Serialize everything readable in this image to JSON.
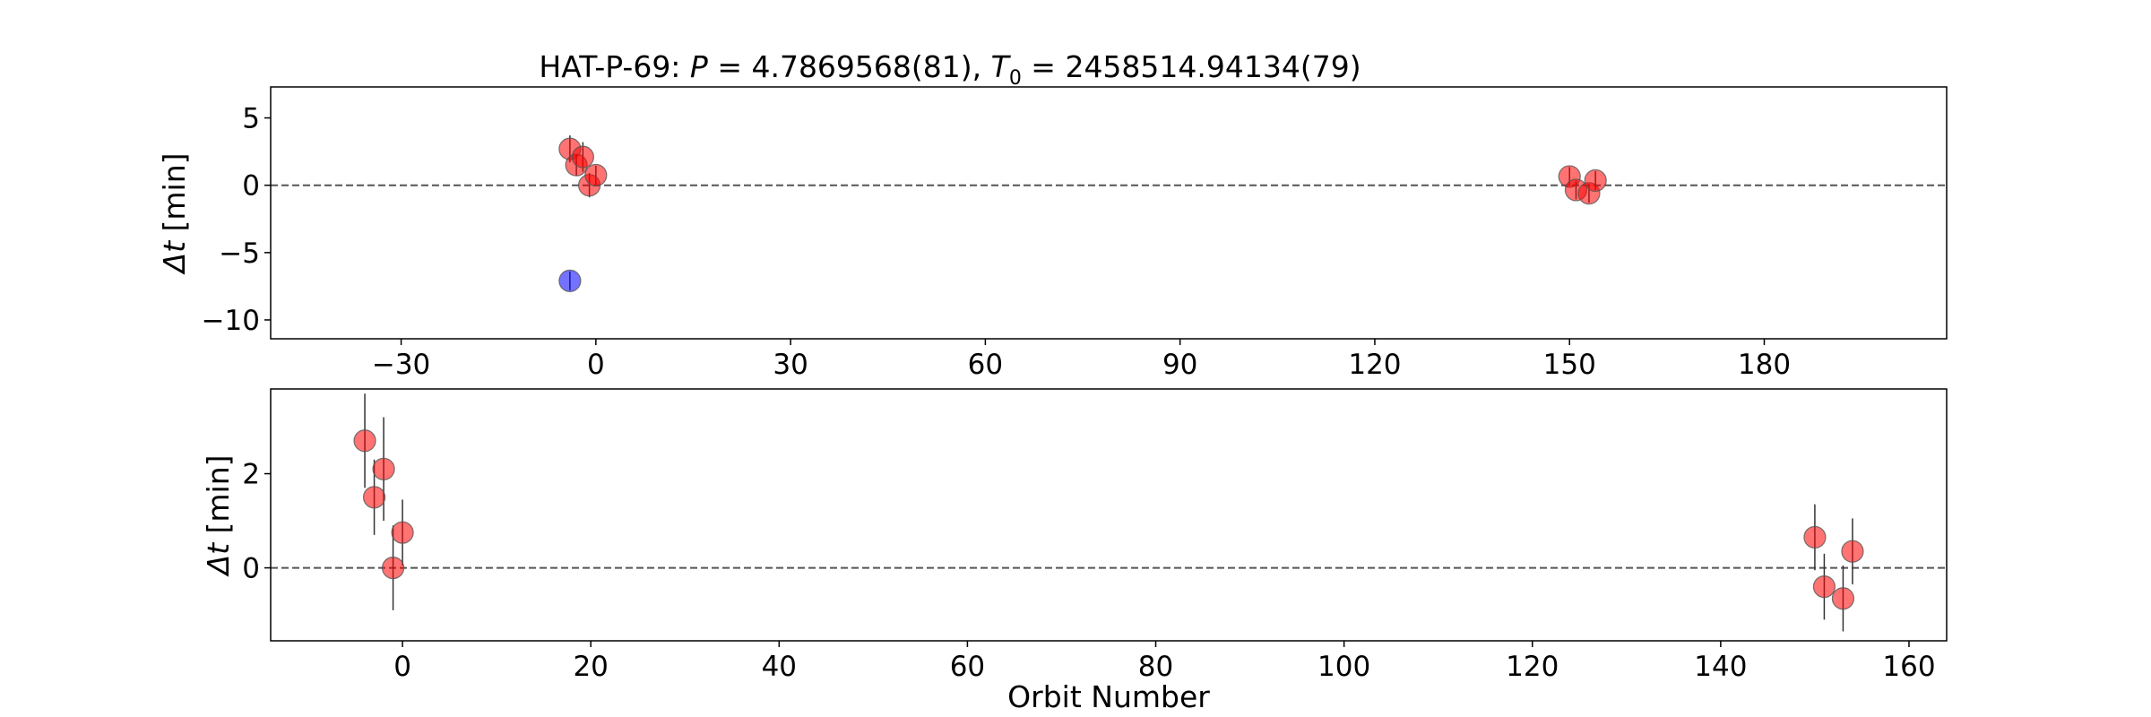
{
  "title": {
    "prefix": "HAT-P-69: ",
    "p_symbol": "P",
    "p_value": " = 4.7869568(81), ",
    "t_symbol": "T",
    "t_sub": "0",
    "t_value": " = 2458514.94134(79)"
  },
  "chart_data": [
    {
      "type": "scatter",
      "ylabel_symbol": "Δt",
      "ylabel_unit": " [min]",
      "xlabel": "",
      "xlim": [
        -50.1,
        208.1
      ],
      "ylim": [
        -11.4,
        7.3
      ],
      "grid": false,
      "xticks": [
        -30,
        0,
        30,
        60,
        90,
        120,
        150,
        180
      ],
      "yticks": [
        5,
        0,
        -5,
        -10
      ],
      "reference_line": 0,
      "series": [
        {
          "color": "#ff0000",
          "points": [
            {
              "x": -4,
              "y": 2.7,
              "err": 1.0
            },
            {
              "x": -3,
              "y": 1.5,
              "err": 0.8
            },
            {
              "x": -2,
              "y": 2.1,
              "err": 1.1
            },
            {
              "x": -1,
              "y": 0.0,
              "err": 0.9
            },
            {
              "x": 0,
              "y": 0.75,
              "err": 0.7
            },
            {
              "x": 150,
              "y": 0.65,
              "err": 0.7
            },
            {
              "x": 151,
              "y": -0.35,
              "err": 0.7
            },
            {
              "x": 153,
              "y": -0.6,
              "err": 0.7
            },
            {
              "x": 154,
              "y": 0.35,
              "err": 0.7
            }
          ]
        },
        {
          "color": "#0000ff",
          "points": [
            {
              "x": -4,
              "y": -7.1,
              "err": 0.7
            }
          ]
        }
      ]
    },
    {
      "type": "scatter",
      "ylabel_symbol": "Δt",
      "ylabel_unit": " [min]",
      "xlabel": "Orbit Number",
      "xlim": [
        -14,
        164
      ],
      "ylim": [
        -1.55,
        3.8
      ],
      "grid": false,
      "xticks": [
        0,
        20,
        40,
        60,
        80,
        100,
        120,
        140,
        160
      ],
      "yticks": [
        2,
        0
      ],
      "reference_line": 0,
      "series": [
        {
          "color": "#ff0000",
          "points": [
            {
              "x": -4,
              "y": 2.7,
              "err": 1.0
            },
            {
              "x": -3,
              "y": 1.5,
              "err": 0.8
            },
            {
              "x": -2,
              "y": 2.1,
              "err": 1.1
            },
            {
              "x": -1,
              "y": 0.0,
              "err": 0.9
            },
            {
              "x": 0,
              "y": 0.75,
              "err": 0.7
            },
            {
              "x": 150,
              "y": 0.65,
              "err": 0.7
            },
            {
              "x": 151,
              "y": -0.4,
              "err": 0.7
            },
            {
              "x": 153,
              "y": -0.65,
              "err": 0.7
            },
            {
              "x": 154,
              "y": 0.35,
              "err": 0.7
            }
          ]
        }
      ]
    }
  ]
}
